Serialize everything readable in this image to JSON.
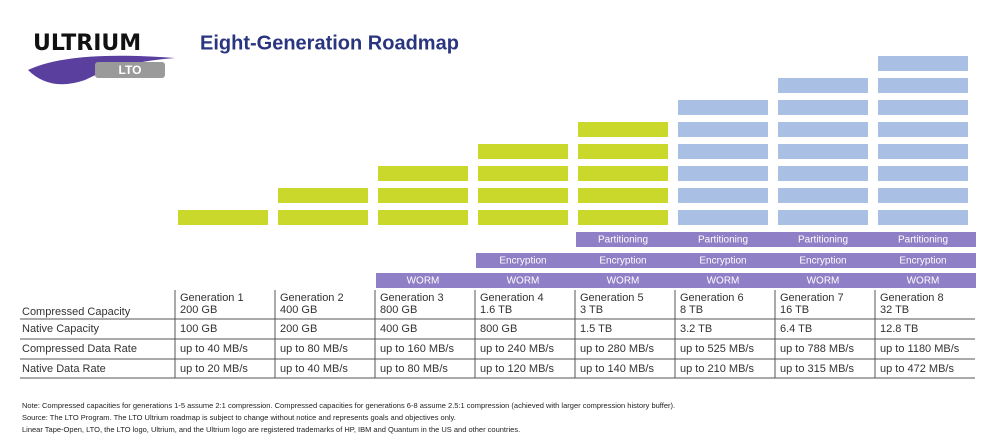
{
  "header": {
    "logo_top": "ULTRIUM",
    "logo_bottom": "LTO",
    "title": "Eight-Generation Roadmap"
  },
  "table": {
    "row_labels": [
      "Compressed Capacity",
      "Native Capacity",
      "Compressed Data Rate",
      "Native Data Rate"
    ],
    "generations": [
      {
        "name": "Generation 1",
        "compressed_capacity": "200 GB",
        "native_capacity": "100 GB",
        "compressed_rate": "up to 40 MB/s",
        "native_rate": "up to 20 MB/s",
        "features": []
      },
      {
        "name": "Generation 2",
        "compressed_capacity": "400 GB",
        "native_capacity": "200 GB",
        "compressed_rate": "up to 80 MB/s",
        "native_rate": "up to 40 MB/s",
        "features": []
      },
      {
        "name": "Generation 3",
        "compressed_capacity": "800 GB",
        "native_capacity": "400 GB",
        "compressed_rate": "up to 160 MB/s",
        "native_rate": "up to 80 MB/s",
        "features": [
          "WORM"
        ]
      },
      {
        "name": "Generation 4",
        "compressed_capacity": "1.6 TB",
        "native_capacity": "800 GB",
        "compressed_rate": "up to 240 MB/s",
        "native_rate": "up to 120 MB/s",
        "features": [
          "WORM",
          "Encryption"
        ]
      },
      {
        "name": "Generation 5",
        "compressed_capacity": "3 TB",
        "native_capacity": "1.5 TB",
        "compressed_rate": "up to 280 MB/s",
        "native_rate": "up to 140 MB/s",
        "features": [
          "WORM",
          "Encryption",
          "Partitioning"
        ]
      },
      {
        "name": "Generation 6",
        "compressed_capacity": "8 TB",
        "native_capacity": "3.2 TB",
        "compressed_rate": "up to 525 MB/s",
        "native_rate": "up to 210 MB/s",
        "features": [
          "WORM",
          "Encryption",
          "Partitioning"
        ]
      },
      {
        "name": "Generation 7",
        "compressed_capacity": "16 TB",
        "native_capacity": "6.4 TB",
        "compressed_rate": "up to 788 MB/s",
        "native_rate": "up to 315 MB/s",
        "features": [
          "WORM",
          "Encryption",
          "Partitioning"
        ]
      },
      {
        "name": "Generation 8",
        "compressed_capacity": "32 TB",
        "native_capacity": "12.8 TB",
        "compressed_rate": "up to 1180 MB/s",
        "native_rate": "up to 472 MB/s",
        "features": [
          "WORM",
          "Encryption",
          "Partitioning"
        ]
      }
    ]
  },
  "notes": [
    "Note:  Compressed capacities for generations 1-5 assume 2:1 compression. Compressed capacities for generations 6-8 assume 2.5:1 compression (achieved with larger compression history buffer).",
    "Source:  The LTO Program. The LTO Ultrium roadmap is subject to change without notice and represents goals and objectives only.",
    "Linear Tape-Open, LTO, the LTO logo, Ultrium, and the Ultrium logo are registered trademarks of HP, IBM and Quantum in the US and other countries."
  ]
}
